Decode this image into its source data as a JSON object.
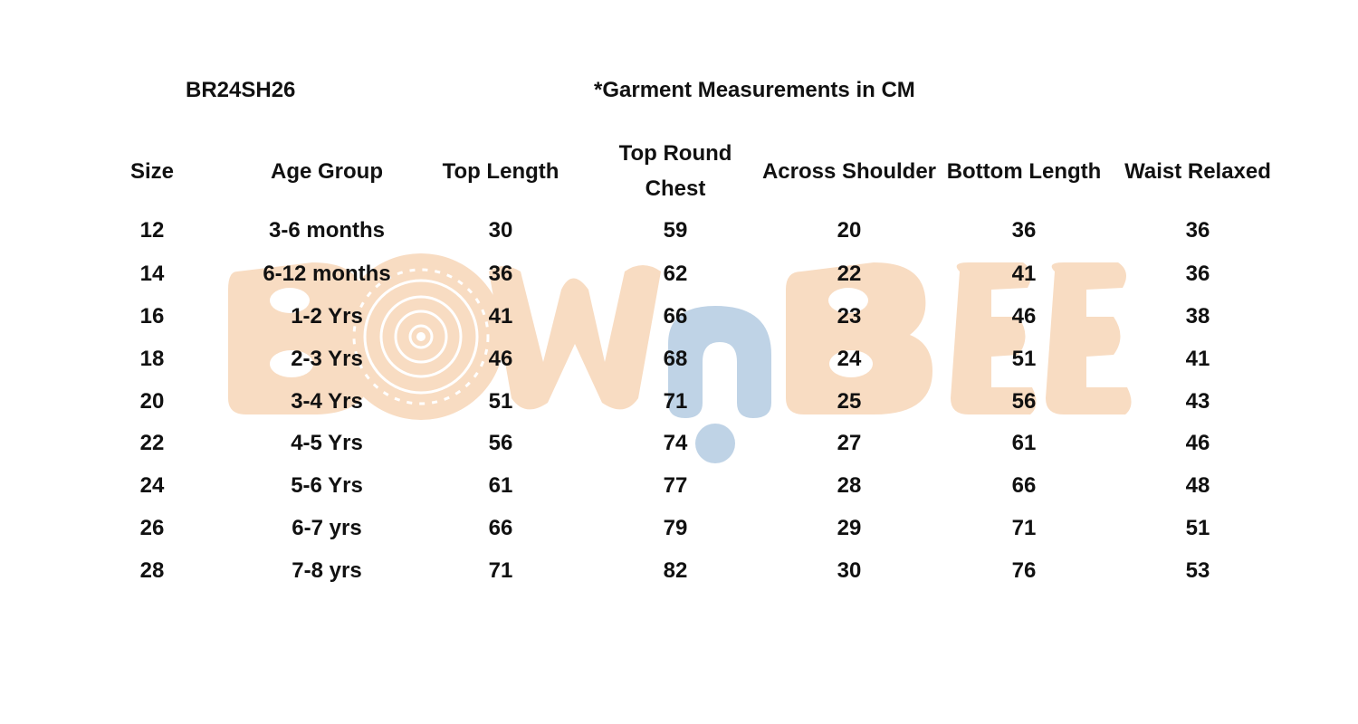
{
  "document": {
    "style_code": "BR24SH26",
    "unit_note": "*Garment Measurements in CM"
  },
  "watermark": {
    "brand_text": "BOWnBEE",
    "peach_color": "#f8dcc2",
    "blue_color": "#bfd3e6"
  },
  "table": {
    "headers": [
      "Size",
      "Age Group",
      "Top Length",
      "Top Round Chest",
      "Across Shoulder",
      "Bottom Length",
      "Waist Relaxed"
    ],
    "rows": [
      [
        "12",
        "3-6 months",
        "30",
        "59",
        "20",
        "36",
        "36"
      ],
      [
        "14",
        "6-12 months",
        "36",
        "62",
        "22",
        "41",
        "36"
      ],
      [
        "16",
        "1-2 Yrs",
        "41",
        "66",
        "23",
        "46",
        "38"
      ],
      [
        "18",
        "2-3 Yrs",
        "46",
        "68",
        "24",
        "51",
        "41"
      ],
      [
        "20",
        "3-4 Yrs",
        "51",
        "71",
        "25",
        "56",
        "43"
      ],
      [
        "22",
        "4-5 Yrs",
        "56",
        "74",
        "27",
        "61",
        "46"
      ],
      [
        "24",
        "5-6 Yrs",
        "61",
        "77",
        "28",
        "66",
        "48"
      ],
      [
        "26",
        "6-7 yrs",
        "66",
        "79",
        "29",
        "71",
        "51"
      ],
      [
        "28",
        "7-8 yrs",
        "71",
        "82",
        "30",
        "76",
        "53"
      ]
    ]
  }
}
